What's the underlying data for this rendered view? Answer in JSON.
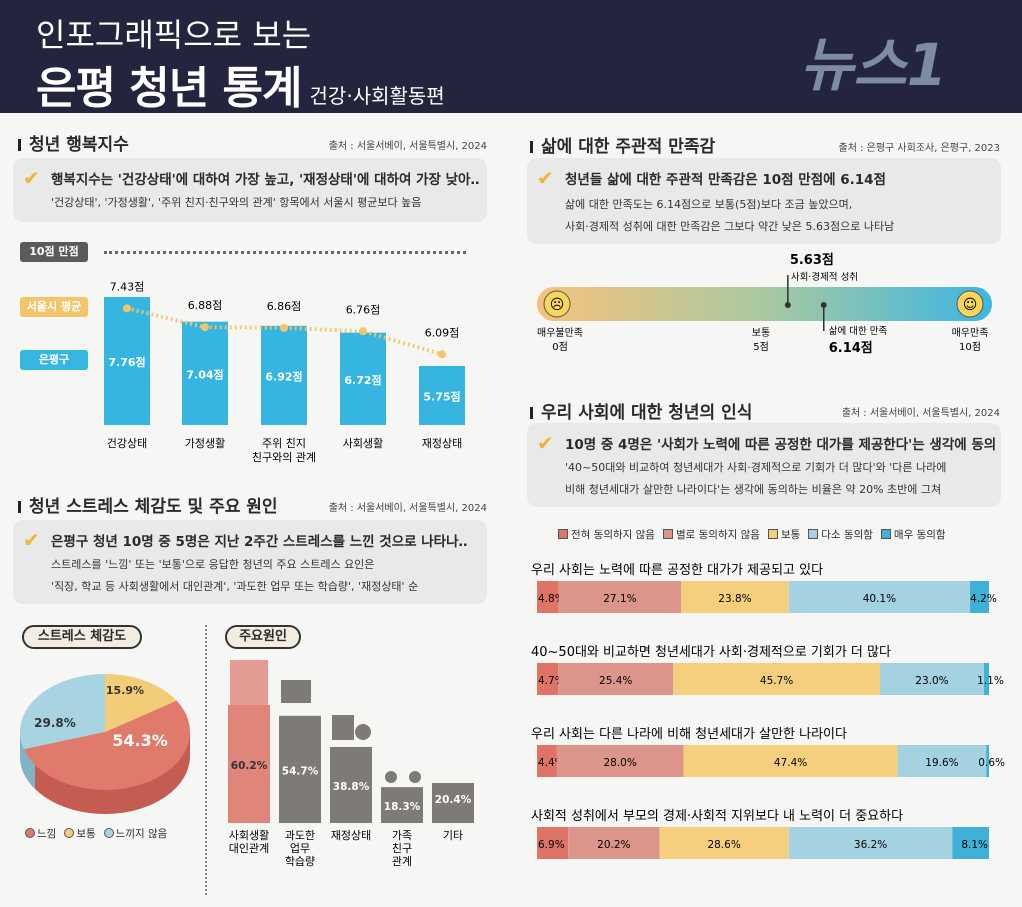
{
  "header": {
    "line1": "인포그래픽으로 보는",
    "line2": "은평 청년 통계",
    "subtitle": "건강·사회활동편"
  },
  "happiness": {
    "title": "청년 행복지수",
    "source": "출처 : 서울서베이, 서울특별시, 2024",
    "summary": "행복지수는 '건강상태'에 대하여 가장 높고, '재정상태'에 대하여 가장 낮아‥",
    "detail": "'건강상태', '가정생활', '주위 친지·친구와의 관계' 항목에서 서울시 평균보다 높음",
    "max_label": "10점 만점",
    "seoul_label": "서울시 평균",
    "ep_label": "은평구"
  },
  "stress": {
    "title": "청년 스트레스 체감도 및 주요 원인",
    "source": "출처 : 서울서베이, 서울특별시, 2024",
    "summary": "은평구 청년 10명 중 5명은 지난 2주간 스트레스를 느낀 것으로 나타나‥",
    "detail1": "스트레스를 '느낌' 또는 '보통'으로 응답한 청년의 주요 스트레스 요인은",
    "detail2": "'직장, 학교 등 사회생활에서 대인관계', '과도한 업무 또는 학습량', '재정상태' 순",
    "pie_title": "스트레스 체감도",
    "cause_title": "주요원인"
  },
  "life": {
    "title": "삶에 대한 주관적 만족감",
    "source": "출처 : 은평구 사회조사, 은평구, 2023",
    "summary": "청년들 삶에 대한 주관적 만족감은 10점 만점에 6.14점",
    "detail1": "삶에 대한 만족도는 6.14점으로 보통(5점)보다 조금 높았으며,",
    "detail2": "사회·경제적 성취에 대한 만족감은 그보다 약간 낮은 5.63점으로 나타남",
    "left_label": "매우불만족",
    "left_val": "0점",
    "mid_label": "보통",
    "mid_val": "5점",
    "right_label": "매우만족",
    "right_val": "10점",
    "m1_label": "사회·경제적 성취",
    "m1_val": "5.63점",
    "m2_label": "삶에 대한 만족",
    "m2_val": "6.14점"
  },
  "society": {
    "title": "우리 사회에 대한 청년의 인식",
    "source": "출처 : 서울서베이, 서울특별시, 2024",
    "summary": "10명 중 4명은 '사회가 노력에 따른 공정한 대가를 제공한다'는 생각에 동의",
    "detail1": "'40~50대와 비교하여 청년세대가 사회·경제적으로 기회가 더 많다'와 '다른 나라에",
    "detail2": "비해 청년세대가 살만한 나라이다'는 생각에 동의하는 비율은 약 20% 초반에 그쳐"
  },
  "watermark": "뉴스1",
  "chart_data": [
    {
      "type": "bar",
      "title": "청년 행복지수",
      "categories": [
        "건강상태",
        "가정생활",
        "주위 친지·친구와의 관계",
        "사회생활",
        "재정상태"
      ],
      "series": [
        {
          "name": "은평구",
          "values": [
            7.76,
            7.04,
            6.92,
            6.72,
            5.75
          ],
          "labels": [
            "7.76점",
            "7.04점",
            "6.92점",
            "6.72점",
            "5.75점"
          ]
        },
        {
          "name": "서울시 평균",
          "type": "line",
          "values": [
            7.43,
            6.88,
            6.86,
            6.76,
            6.09
          ],
          "labels": [
            "7.43점",
            "6.88점",
            "6.86점",
            "6.76점",
            "6.09점"
          ]
        }
      ],
      "ylim": [
        0,
        10
      ]
    },
    {
      "type": "pie",
      "title": "스트레스 체감도",
      "categories": [
        "느낌",
        "보통",
        "느끼지 않음"
      ],
      "values": [
        54.3,
        15.9,
        29.8
      ],
      "labels": [
        "54.3%",
        "15.9%",
        "29.8%"
      ],
      "colors": [
        "#e07a6a",
        "#f3cc78",
        "#a8d4e2"
      ]
    },
    {
      "type": "bar",
      "title": "주요원인",
      "categories": [
        "사회생활 대인관계",
        "과도한 업무 학습량",
        "재정상태",
        "가족 친구 관계",
        "기타"
      ],
      "values": [
        60.2,
        54.7,
        38.8,
        18.3,
        20.4
      ],
      "labels": [
        "60.2%",
        "54.7%",
        "38.8%",
        "18.3%",
        "20.4%"
      ]
    },
    {
      "type": "line",
      "title": "삶에 대한 주관적 만족감",
      "xlim": [
        0,
        10
      ],
      "points": [
        {
          "name": "사회·경제적 성취",
          "value": 5.63
        },
        {
          "name": "삶에 대한 만족",
          "value": 6.14
        }
      ]
    },
    {
      "type": "bar",
      "stacked": true,
      "orientation": "horizontal",
      "title": "우리 사회에 대한 청년의 인식",
      "legend": [
        "전혀 동의하지 않음",
        "별로 동의하지 않음",
        "보통",
        "다소 동의함",
        "매우 동의함"
      ],
      "colors": [
        "#de7466",
        "#dc958a",
        "#f5cf7d",
        "#a4d2e0",
        "#3fb1d8"
      ],
      "categories": [
        "우리 사회는 노력에 따른 공정한 대가가 제공되고 있다",
        "40~50대와 비교하면 청년세대가 사회·경제적으로 기회가 더 많다",
        "우리 사회는 다른 나라에 비해 청년세대가 살만한 나라이다",
        "사회적 성취에서 부모의 경제·사회적 지위보다 내 노력이 더 중요하다"
      ],
      "rows": [
        [
          4.8,
          27.1,
          23.8,
          40.1,
          4.2
        ],
        [
          4.7,
          25.4,
          45.7,
          23.0,
          1.1
        ],
        [
          4.4,
          28.0,
          47.4,
          19.6,
          0.6
        ],
        [
          6.9,
          20.2,
          28.6,
          36.2,
          8.1
        ]
      ],
      "labels": [
        [
          "4.8%",
          "27.1%",
          "23.8%",
          "40.1%",
          "4.2%"
        ],
        [
          "4.7%",
          "25.4%",
          "45.7%",
          "23.0%",
          "1.1%"
        ],
        [
          "4.4%",
          "28.0%",
          "47.4%",
          "19.6%",
          "0.6%"
        ],
        [
          "6.9%",
          "20.2%",
          "28.6%",
          "36.2%",
          "8.1%"
        ]
      ]
    }
  ]
}
